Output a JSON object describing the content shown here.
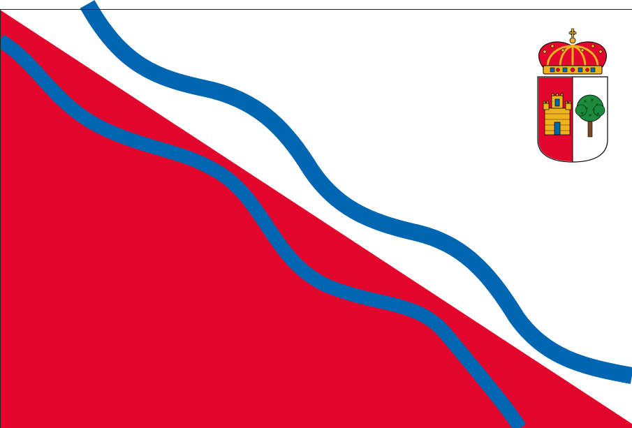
{
  "flag": {
    "colors": {
      "field": "#ffffff",
      "red": "#e2062c",
      "blue": "#0066b2",
      "gold": "#f0b320",
      "green": "#1b8a3c",
      "trunk": "#7a4a1e",
      "outline": "#000000"
    },
    "elements": [
      "red-diagonal-field",
      "wavy-blue-stripe-upper",
      "wavy-blue-stripe-lower",
      "coat-of-arms"
    ],
    "coat_of_arms": {
      "crown": "royal-crown-icon",
      "left_quarter": "castle-icon",
      "right_quarter": "tree-icon"
    }
  }
}
